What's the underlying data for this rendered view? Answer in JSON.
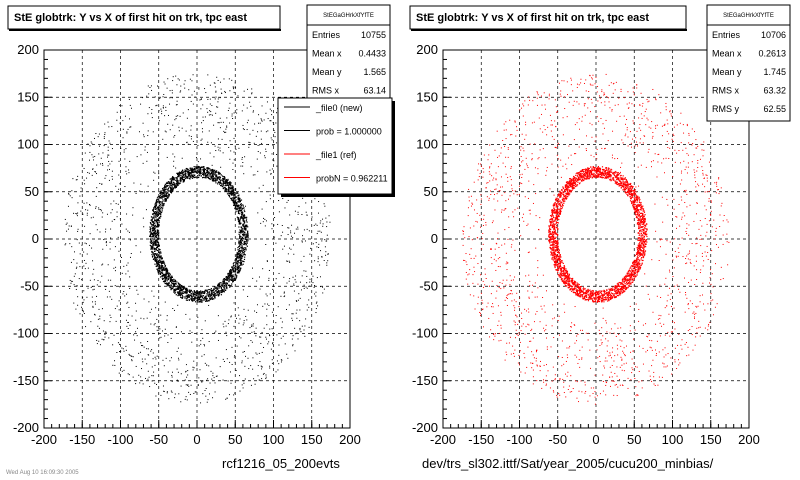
{
  "chart_data": [
    {
      "type": "scatter",
      "title": "StE globtrk: Y vs X of first hit on trk, tpc east",
      "xlabel": "rcf1216_05_200evts",
      "ylabel": "",
      "xlim": [
        -200,
        200
      ],
      "ylim": [
        -200,
        200
      ],
      "xticks": [
        "-200",
        "-150",
        "-100",
        "-50",
        "0",
        "50",
        "100",
        "150",
        "200"
      ],
      "yticks": [
        "200",
        "150",
        "100",
        "50",
        "0",
        "-50",
        "-100",
        "-150",
        "-200"
      ],
      "grid": true,
      "marker_color": "#000000",
      "stats": {
        "name": "StEGaGHrkXfYfTE",
        "rows": [
          {
            "label": "Entries",
            "value": "10755"
          },
          {
            "label": "Mean x",
            "value": "0.4433"
          },
          {
            "label": "Mean y",
            "value": "1.565"
          },
          {
            "label": "RMS x",
            "value": "63.14"
          }
        ]
      },
      "legend": {
        "placement": "top-right",
        "entries": [
          {
            "label": "_file0 (new)",
            "color": "#000000"
          },
          {
            "label": "prob = 1.000000",
            "color": "#000000"
          },
          {
            "label": "_file1 (ref)",
            "color": "#ff0000"
          },
          {
            "label": "probN = 0.962211",
            "color": "#ff0000"
          }
        ]
      },
      "distribution": {
        "ring_inner_x": [
          -50,
          55
        ],
        "ring_inner_y": [
          -55,
          65
        ],
        "ring_thickness": 12,
        "halo_radius": [
          70,
          175
        ]
      }
    },
    {
      "type": "scatter",
      "title": "StE globtrk: Y vs X of first hit on trk, tpc east",
      "xlabel": "dev/trs_sl302.ittf/Sat/year_2005/cucu200_minbias/",
      "ylabel": "",
      "xlim": [
        -200,
        200
      ],
      "ylim": [
        -200,
        200
      ],
      "xticks": [
        "-200",
        "-150",
        "-100",
        "-50",
        "0",
        "50",
        "100",
        "150",
        "200"
      ],
      "yticks": [
        "200",
        "150",
        "100",
        "50",
        "0",
        "-50",
        "-100",
        "-150",
        "-200"
      ],
      "grid": true,
      "marker_color": "#ff0000",
      "stats": {
        "name": "StEGaGHrkXfYfTE",
        "rows": [
          {
            "label": "Entries",
            "value": "10706"
          },
          {
            "label": "Mean x",
            "value": "0.2613"
          },
          {
            "label": "Mean y",
            "value": "1.745"
          },
          {
            "label": "RMS x",
            "value": "63.32"
          },
          {
            "label": "RMS y",
            "value": "62.55"
          }
        ]
      },
      "distribution": {
        "ring_inner_x": [
          -50,
          55
        ],
        "ring_inner_y": [
          -55,
          65
        ],
        "ring_thickness": 12,
        "halo_radius": [
          70,
          175
        ]
      }
    }
  ],
  "footer_text": "Wed Aug 10 16:09:30 2005"
}
